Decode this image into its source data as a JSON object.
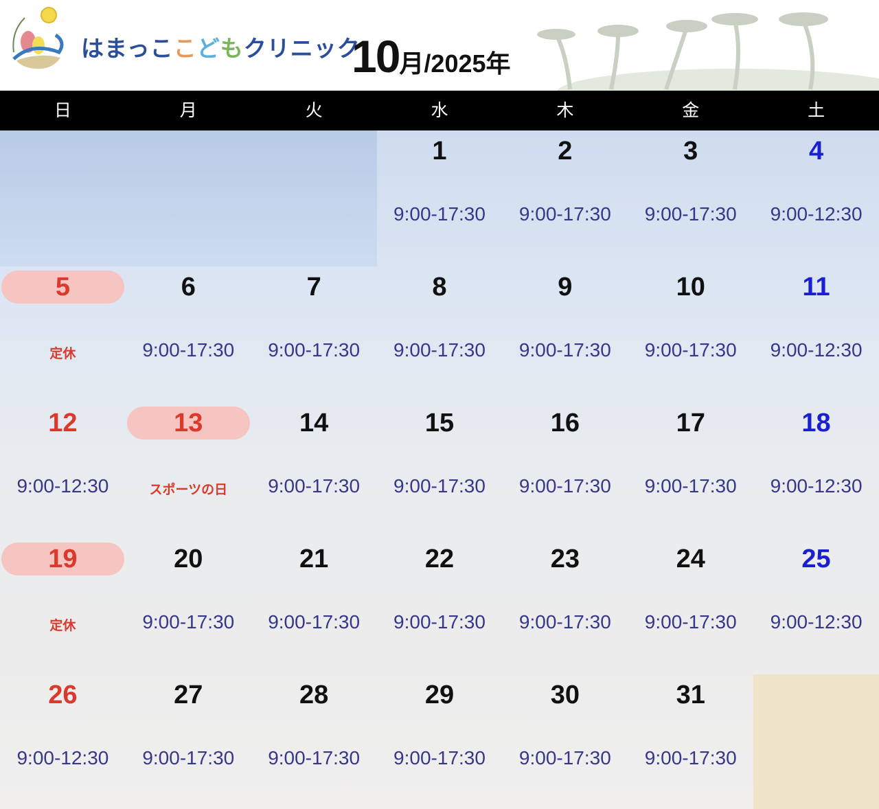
{
  "header": {
    "clinic_name_parts": [
      {
        "text": "はまっこ",
        "color": "#2b4e9a"
      },
      {
        "text": "こ",
        "color": "#e69a5a"
      },
      {
        "text": "ど",
        "color": "#5ab0e0"
      },
      {
        "text": "も",
        "color": "#7ab55a"
      },
      {
        "text": "クリニック",
        "color": "#2b4e9a"
      }
    ],
    "month": "10",
    "year_suffix": "月/2025年"
  },
  "weekdays": [
    "日",
    "月",
    "火",
    "水",
    "木",
    "金",
    "土"
  ],
  "colors": {
    "sunday_holiday": "#d93a2b",
    "saturday": "#1a1fcf",
    "hours": "#37378a",
    "holiday_pill": "#f6c5c1",
    "header_bar": "#000000"
  },
  "weeks": [
    [
      null,
      null,
      null,
      {
        "day": "1",
        "hours": "9:00-17:30"
      },
      {
        "day": "2",
        "hours": "9:00-17:30"
      },
      {
        "day": "3",
        "hours": "9:00-17:30"
      },
      {
        "day": "4",
        "hours": "9:00-12:30",
        "kind": "sat"
      }
    ],
    [
      {
        "day": "5",
        "hours": "定休",
        "kind": "sun",
        "closed": true,
        "pill": true
      },
      {
        "day": "6",
        "hours": "9:00-17:30"
      },
      {
        "day": "7",
        "hours": "9:00-17:30"
      },
      {
        "day": "8",
        "hours": "9:00-17:30"
      },
      {
        "day": "9",
        "hours": "9:00-17:30"
      },
      {
        "day": "10",
        "hours": "9:00-17:30"
      },
      {
        "day": "11",
        "hours": "9:00-12:30",
        "kind": "sat"
      }
    ],
    [
      {
        "day": "12",
        "hours": "9:00-12:30",
        "kind": "sun"
      },
      {
        "day": "13",
        "hours": "スポーツの日",
        "kind": "sun",
        "closed": true,
        "pill": true
      },
      {
        "day": "14",
        "hours": "9:00-17:30"
      },
      {
        "day": "15",
        "hours": "9:00-17:30"
      },
      {
        "day": "16",
        "hours": "9:00-17:30"
      },
      {
        "day": "17",
        "hours": "9:00-17:30"
      },
      {
        "day": "18",
        "hours": "9:00-12:30",
        "kind": "sat"
      }
    ],
    [
      {
        "day": "19",
        "hours": "定休",
        "kind": "sun",
        "closed": true,
        "pill": true
      },
      {
        "day": "20",
        "hours": "9:00-17:30"
      },
      {
        "day": "21",
        "hours": "9:00-17:30"
      },
      {
        "day": "22",
        "hours": "9:00-17:30"
      },
      {
        "day": "23",
        "hours": "9:00-17:30"
      },
      {
        "day": "24",
        "hours": "9:00-17:30"
      },
      {
        "day": "25",
        "hours": "9:00-12:30",
        "kind": "sat"
      }
    ],
    [
      {
        "day": "26",
        "hours": "9:00-12:30",
        "kind": "sun"
      },
      {
        "day": "27",
        "hours": "9:00-17:30"
      },
      {
        "day": "28",
        "hours": "9:00-17:30"
      },
      {
        "day": "29",
        "hours": "9:00-17:30"
      },
      {
        "day": "30",
        "hours": "9:00-17:30"
      },
      {
        "day": "31",
        "hours": "9:00-17:30"
      },
      null
    ]
  ]
}
